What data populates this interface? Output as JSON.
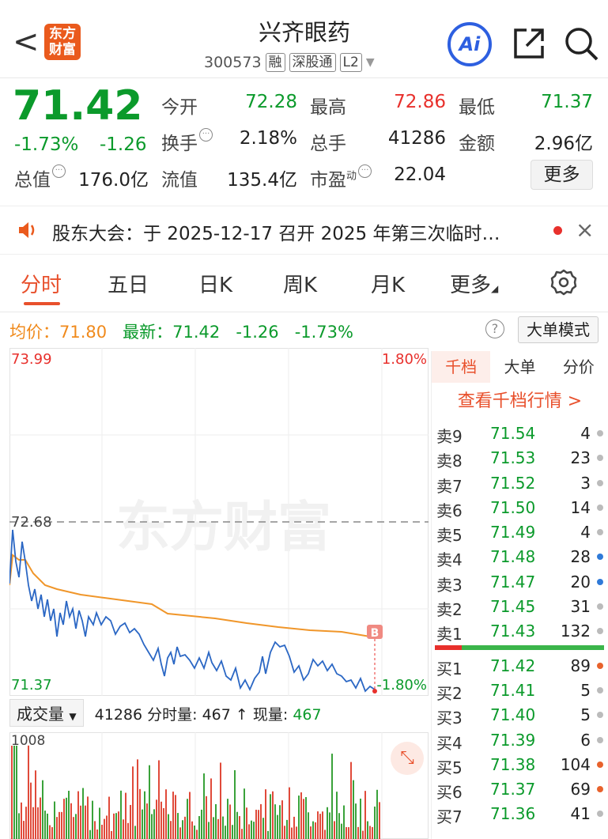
{
  "header": {
    "back": "<",
    "logo": "东方财富",
    "title": "兴齐眼药",
    "code": "300573",
    "tags": [
      "融",
      "深股通",
      "L2"
    ],
    "ai": "Ai"
  },
  "quote": {
    "price": "71.42",
    "pct": "-1.73%",
    "chg": "-1.26",
    "rows": [
      [
        {
          "l": "今开",
          "v": "72.28",
          "c": "green"
        },
        {
          "l": "最高",
          "v": "72.86",
          "c": "red"
        },
        {
          "l": "最低",
          "v": "71.37",
          "c": "green"
        }
      ],
      [
        {
          "l": "换手",
          "v": "2.18%",
          "c": "dark",
          "i": true
        },
        {
          "l": "总手",
          "v": "41286",
          "c": "dark"
        },
        {
          "l": "金额",
          "v": "2.96亿",
          "c": "dark"
        }
      ],
      [
        {
          "l": "流值",
          "v": "135.4亿",
          "c": "dark"
        },
        {
          "l": "市盈",
          "sup": "动",
          "v": "22.04",
          "c": "dark",
          "i": true
        }
      ]
    ],
    "total_label": "总值",
    "total_value": "176.0亿",
    "more": "更多"
  },
  "notice": {
    "text": "股东大会：于 2025-12-17 召开 2025 年第三次临时…"
  },
  "tabs": [
    "分时",
    "五日",
    "日K",
    "周K",
    "月K",
    "更多"
  ],
  "chart": {
    "avg_label": "均价：",
    "avg": "71.80",
    "latest_label": "最新：",
    "latest": "71.42",
    "chg": "-1.26",
    "pct": "-1.73%",
    "help": "?",
    "bigorder": "大单模式",
    "ymax": "73.99",
    "ymax_pct": "1.80%",
    "ref": "72.68",
    "ymin": "71.37",
    "ymin_pct": "-1.80%",
    "badge": "B",
    "watermark": "东方财富"
  },
  "volume": {
    "select": "成交量",
    "total": "41286",
    "fs_label": "分时量:",
    "fs": "467",
    "arrow": "↑",
    "now_label": "现量:",
    "now": "467",
    "ymax": "1008"
  },
  "orderbook": {
    "tabs": [
      "千档",
      "大单",
      "分价"
    ],
    "link": "查看千档行情 >",
    "asks": [
      [
        "卖9",
        "71.54",
        "4",
        "#bbb"
      ],
      [
        "卖8",
        "71.53",
        "23",
        "#bbb"
      ],
      [
        "卖7",
        "71.52",
        "3",
        "#bbb"
      ],
      [
        "卖6",
        "71.50",
        "14",
        "#bbb"
      ],
      [
        "卖5",
        "71.49",
        "4",
        "#bbb"
      ],
      [
        "卖4",
        "71.48",
        "28",
        "#2f7ad8"
      ],
      [
        "卖3",
        "71.47",
        "20",
        "#2f7ad8"
      ],
      [
        "卖2",
        "71.45",
        "31",
        "#bbb"
      ],
      [
        "卖1",
        "71.43",
        "132",
        "#bbb"
      ]
    ],
    "bids": [
      [
        "买1",
        "71.42",
        "89",
        "#e8622c"
      ],
      [
        "买2",
        "71.41",
        "5",
        "#bbb"
      ],
      [
        "买3",
        "71.40",
        "5",
        "#bbb"
      ],
      [
        "买4",
        "71.39",
        "6",
        "#bbb"
      ],
      [
        "买5",
        "71.38",
        "104",
        "#e8622c"
      ],
      [
        "买6",
        "71.37",
        "69",
        "#e8622c"
      ],
      [
        "买7",
        "71.36",
        "41",
        "#bbb"
      ]
    ]
  }
}
